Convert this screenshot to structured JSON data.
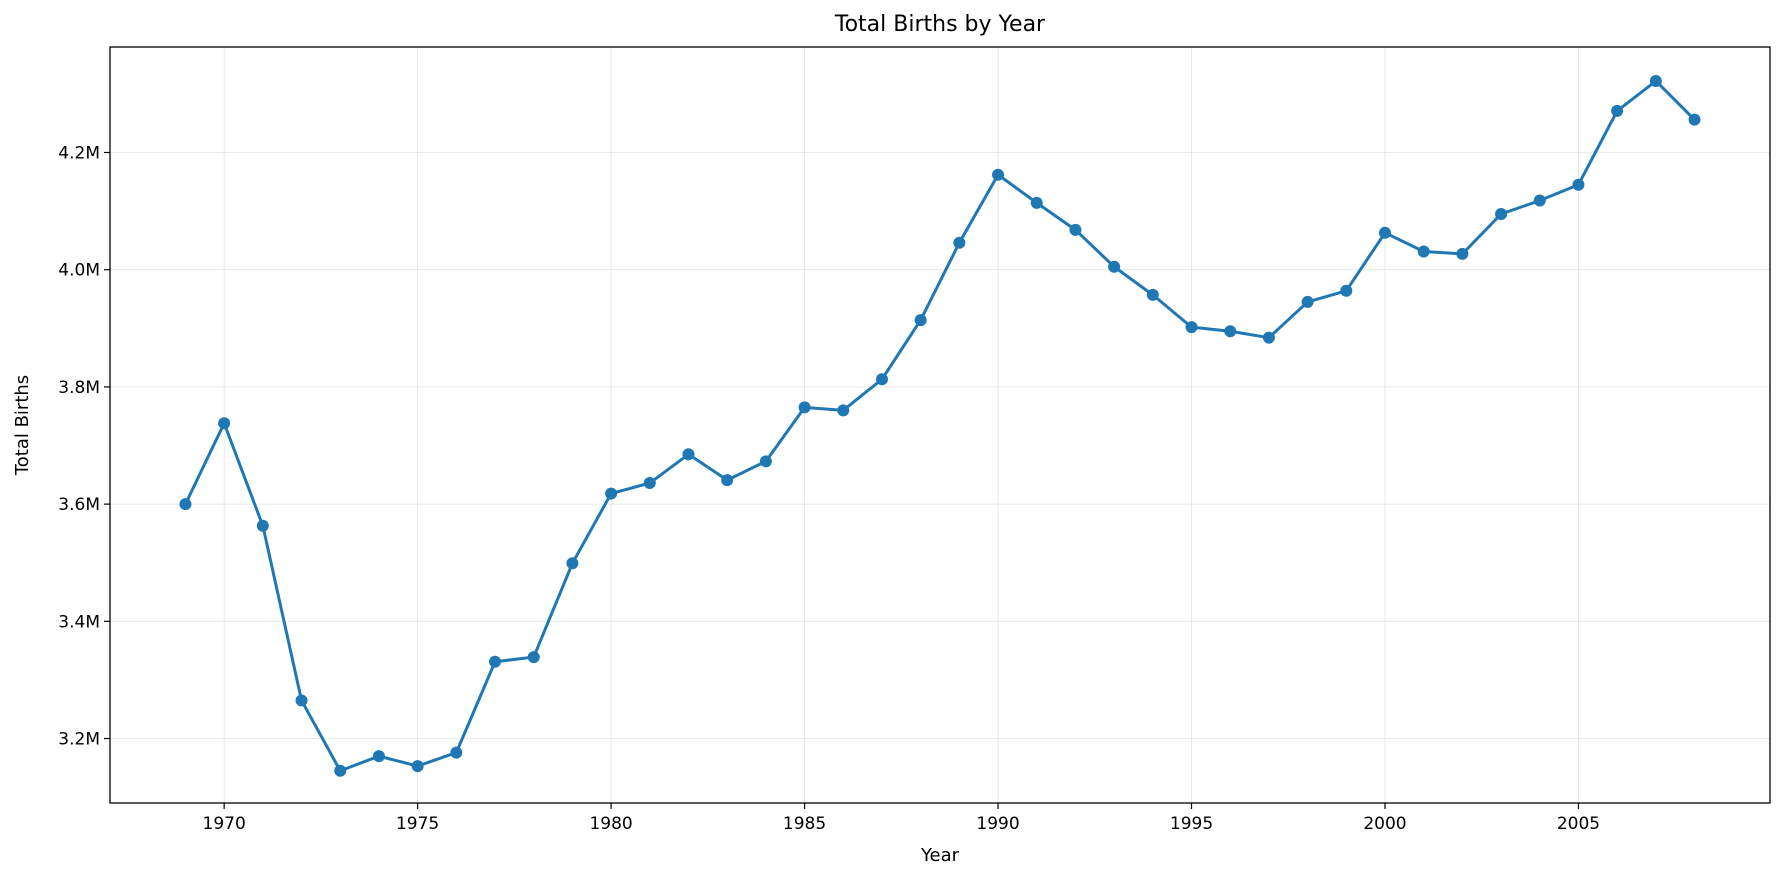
{
  "chart_data": {
    "type": "line",
    "title": "Total Births by Year",
    "xlabel": "Year",
    "ylabel": "Total Births",
    "xlim": [
      1967.05,
      2009.95
    ],
    "ylim": [
      3090000,
      4380000
    ],
    "x_ticks": [
      1970,
      1975,
      1980,
      1985,
      1990,
      1995,
      2000,
      2005
    ],
    "y_ticks": [
      {
        "value": 3200000,
        "label": "3.2M"
      },
      {
        "value": 3400000,
        "label": "3.4M"
      },
      {
        "value": 3600000,
        "label": "3.6M"
      },
      {
        "value": 3800000,
        "label": "3.8M"
      },
      {
        "value": 4000000,
        "label": "4.0M"
      },
      {
        "value": 4200000,
        "label": "4.2M"
      }
    ],
    "grid": true,
    "color": "#1f77b4",
    "series": [
      {
        "x": [
          1969,
          1970,
          1971,
          1972,
          1973,
          1974,
          1975,
          1976,
          1977,
          1978,
          1979,
          1980,
          1981,
          1982,
          1983,
          1984,
          1985,
          1986,
          1987,
          1988,
          1989,
          1990,
          1991,
          1992,
          1993,
          1994,
          1995,
          1996,
          1997,
          1998,
          1999,
          2000,
          2001,
          2002,
          2003,
          2004,
          2005,
          2006,
          2007,
          2008
        ],
        "y": [
          3600000,
          3738000,
          3563000,
          3265000,
          3145000,
          3170000,
          3153000,
          3176000,
          3331000,
          3339000,
          3499000,
          3618000,
          3636000,
          3685000,
          3641000,
          3673000,
          3765000,
          3760000,
          3813000,
          3914000,
          4046000,
          4162000,
          4114000,
          4068000,
          4005000,
          3957000,
          3902000,
          3895000,
          3884000,
          3945000,
          3964000,
          4063000,
          4031000,
          4027000,
          4095000,
          4118000,
          4145000,
          4271000,
          4322000,
          4256000
        ]
      }
    ]
  }
}
